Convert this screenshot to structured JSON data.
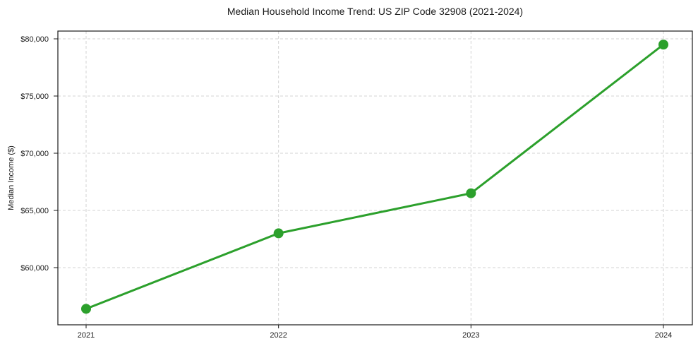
{
  "chart_data": {
    "type": "line",
    "title": "Median Household Income Trend: US ZIP Code 32908 (2021-2024)",
    "xlabel": "",
    "ylabel": "Median Income ($)",
    "x": [
      "2021",
      "2022",
      "2023",
      "2024"
    ],
    "series": [
      {
        "name": "Median Income",
        "values": [
          56400,
          63000,
          66500,
          79500
        ],
        "color": "#2ca02c",
        "marker": "circle"
      }
    ],
    "ylim": [
      55000,
      80680
    ],
    "yticks": [
      60000,
      65000,
      70000,
      75000,
      80000
    ],
    "ytick_labels": [
      "$60,000",
      "$65,000",
      "$70,000",
      "$75,000",
      "$80,000"
    ],
    "grid": true,
    "grid_style": "dashed",
    "legend": false
  },
  "colors": {
    "line": "#2ca02c",
    "grid": "#d3d3d3",
    "axis": "#1a1a1a",
    "text": "#1a1a1a",
    "background": "#ffffff"
  }
}
